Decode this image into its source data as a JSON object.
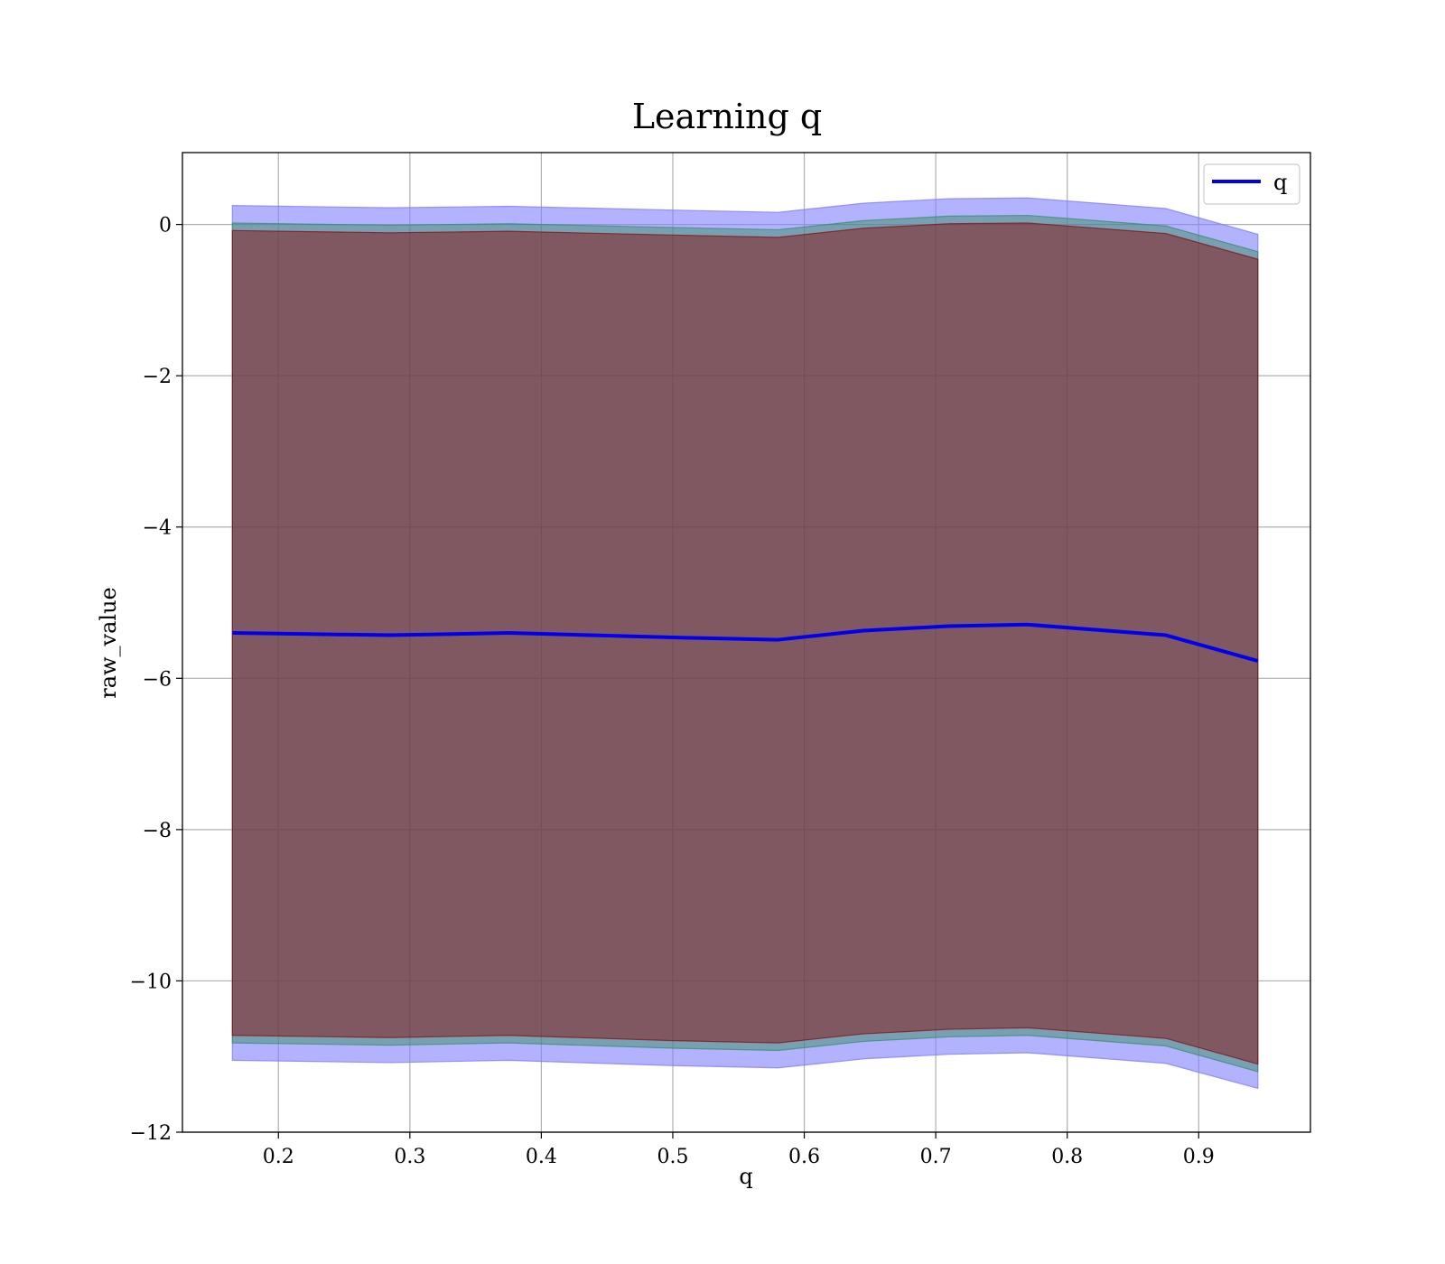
{
  "chart_data": {
    "type": "line",
    "title": "Learning q",
    "xlabel": "q",
    "ylabel": "raw_value",
    "xlim": [
      0.127,
      0.985
    ],
    "ylim": [
      -12.0,
      0.95
    ],
    "x_ticks": [
      0.2,
      0.3,
      0.4,
      0.5,
      0.6,
      0.7,
      0.8,
      0.9
    ],
    "x_tick_labels": [
      "0.2",
      "0.3",
      "0.4",
      "0.5",
      "0.6",
      "0.7",
      "0.8",
      "0.9"
    ],
    "y_ticks": [
      0,
      -2,
      -4,
      -6,
      -8,
      -10,
      -12
    ],
    "y_tick_labels": [
      "0",
      "−2",
      "−4",
      "−6",
      "−8",
      "−10",
      "−12"
    ],
    "grid": true,
    "legend": {
      "position": "top-right",
      "entries": [
        "q"
      ]
    },
    "x": [
      0.165,
      0.285,
      0.375,
      0.5,
      0.58,
      0.645,
      0.71,
      0.77,
      0.875,
      0.945
    ],
    "series": [
      {
        "name": "q",
        "color": "#0000ee",
        "values": [
          -5.4,
          -5.43,
          -5.4,
          -5.46,
          -5.49,
          -5.37,
          -5.31,
          -5.29,
          -5.43,
          -5.77
        ]
      }
    ],
    "bands": [
      {
        "color": "#7f7fff",
        "opacity": 0.6,
        "lower": [
          -11.05,
          -11.08,
          -11.05,
          -11.12,
          -11.15,
          -11.03,
          -10.97,
          -10.95,
          -11.09,
          -11.42
        ],
        "upper": [
          0.25,
          0.22,
          0.24,
          0.19,
          0.16,
          0.28,
          0.34,
          0.35,
          0.21,
          -0.13
        ]
      },
      {
        "color": "#2e8b57",
        "opacity": 0.45,
        "lower": [
          -10.82,
          -10.85,
          -10.82,
          -10.89,
          -10.92,
          -10.8,
          -10.74,
          -10.72,
          -10.86,
          -11.2
        ],
        "upper": [
          0.02,
          -0.01,
          0.01,
          -0.04,
          -0.07,
          0.05,
          0.11,
          0.12,
          -0.02,
          -0.36
        ]
      },
      {
        "color": "#8b0000",
        "opacity": 0.45,
        "lower": [
          -10.72,
          -10.75,
          -10.72,
          -10.79,
          -10.82,
          -10.7,
          -10.64,
          -10.62,
          -10.76,
          -11.1
        ],
        "upper": [
          -0.08,
          -0.11,
          -0.09,
          -0.14,
          -0.17,
          -0.05,
          0.01,
          0.02,
          -0.12,
          -0.46
        ]
      }
    ]
  }
}
